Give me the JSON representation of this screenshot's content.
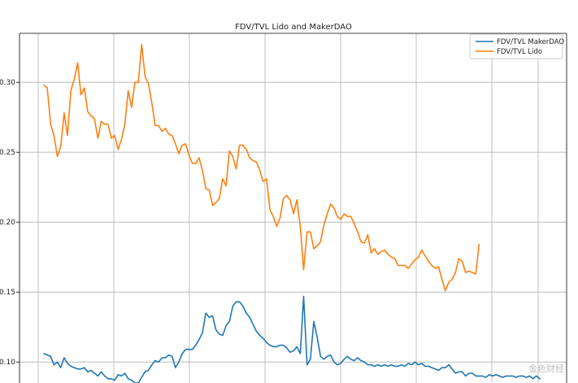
{
  "chart_data": {
    "type": "line",
    "title": "FDV/TVL Lido and MakerDAO",
    "xlabel": "",
    "ylabel": "",
    "ylim": [
      0.085,
      0.335
    ],
    "yticks": [
      "0.10",
      "0.15",
      "0.20",
      "0.25",
      "0.30"
    ],
    "grid": true,
    "legend_position": "top-right",
    "colors": {
      "makerdao": "#1f77b4",
      "lido": "#ff7f0e",
      "grid": "#b0b0b0",
      "axis": "#000000"
    },
    "x_count": 148,
    "series": [
      {
        "name": "FDV/TVL MakerDAO",
        "color": "#1f77b4",
        "values": [
          0.106,
          0.105,
          0.104,
          0.098,
          0.1,
          0.096,
          0.103,
          0.099,
          0.097,
          0.096,
          0.095,
          0.095,
          0.096,
          0.093,
          0.094,
          0.092,
          0.09,
          0.093,
          0.09,
          0.088,
          0.088,
          0.087,
          0.091,
          0.09,
          0.092,
          0.088,
          0.087,
          0.085,
          0.085,
          0.089,
          0.093,
          0.094,
          0.098,
          0.101,
          0.1,
          0.103,
          0.103,
          0.105,
          0.104,
          0.096,
          0.1,
          0.106,
          0.109,
          0.109,
          0.109,
          0.112,
          0.116,
          0.121,
          0.135,
          0.132,
          0.133,
          0.123,
          0.12,
          0.119,
          0.126,
          0.129,
          0.14,
          0.143,
          0.143,
          0.14,
          0.135,
          0.132,
          0.127,
          0.122,
          0.119,
          0.117,
          0.114,
          0.112,
          0.111,
          0.111,
          0.112,
          0.112,
          0.11,
          0.107,
          0.108,
          0.111,
          0.106,
          0.147,
          0.098,
          0.102,
          0.129,
          0.118,
          0.104,
          0.102,
          0.104,
          0.105,
          0.1,
          0.098,
          0.099,
          0.102,
          0.104,
          0.102,
          0.101,
          0.103,
          0.101,
          0.1,
          0.098,
          0.098,
          0.097,
          0.098,
          0.097,
          0.098,
          0.097,
          0.098,
          0.097,
          0.097,
          0.098,
          0.097,
          0.099,
          0.098,
          0.1,
          0.098,
          0.099,
          0.097,
          0.097,
          0.096,
          0.095,
          0.094,
          0.096,
          0.096,
          0.098,
          0.095,
          0.092,
          0.093,
          0.093,
          0.09,
          0.092,
          0.092,
          0.09,
          0.09,
          0.09,
          0.089,
          0.091,
          0.09,
          0.091,
          0.09,
          0.089,
          0.09,
          0.09,
          0.09,
          0.089,
          0.09,
          0.09,
          0.089,
          0.09,
          0.088,
          0.09,
          0.088
        ]
      },
      {
        "name": "FDV/TVL Lido",
        "color": "#ff7f0e",
        "values": [
          0.298,
          0.296,
          0.27,
          0.262,
          0.247,
          0.254,
          0.278,
          0.262,
          0.294,
          0.302,
          0.314,
          0.291,
          0.296,
          0.279,
          0.276,
          0.274,
          0.26,
          0.272,
          0.27,
          0.27,
          0.26,
          0.262,
          0.252,
          0.259,
          0.27,
          0.294,
          0.282,
          0.3,
          0.3,
          0.327,
          0.304,
          0.299,
          0.285,
          0.269,
          0.269,
          0.265,
          0.267,
          0.263,
          0.262,
          0.256,
          0.249,
          0.255,
          0.256,
          0.248,
          0.242,
          0.242,
          0.246,
          0.237,
          0.224,
          0.223,
          0.212,
          0.214,
          0.217,
          0.231,
          0.226,
          0.251,
          0.247,
          0.238,
          0.255,
          0.255,
          0.252,
          0.246,
          0.244,
          0.243,
          0.237,
          0.229,
          0.231,
          0.209,
          0.204,
          0.197,
          0.203,
          0.217,
          0.219,
          0.216,
          0.206,
          0.216,
          0.197,
          0.166,
          0.193,
          0.193,
          0.181,
          0.183,
          0.186,
          0.198,
          0.206,
          0.213,
          0.21,
          0.204,
          0.202,
          0.206,
          0.204,
          0.204,
          0.199,
          0.193,
          0.186,
          0.185,
          0.191,
          0.178,
          0.181,
          0.177,
          0.179,
          0.18,
          0.177,
          0.175,
          0.174,
          0.169,
          0.169,
          0.169,
          0.167,
          0.17,
          0.173,
          0.175,
          0.18,
          0.176,
          0.172,
          0.169,
          0.167,
          0.168,
          0.159,
          0.151,
          0.157,
          0.159,
          0.164,
          0.174,
          0.172,
          0.164,
          0.165,
          0.164,
          0.163,
          0.184
        ]
      }
    ]
  },
  "watermark_text": "金色财经"
}
